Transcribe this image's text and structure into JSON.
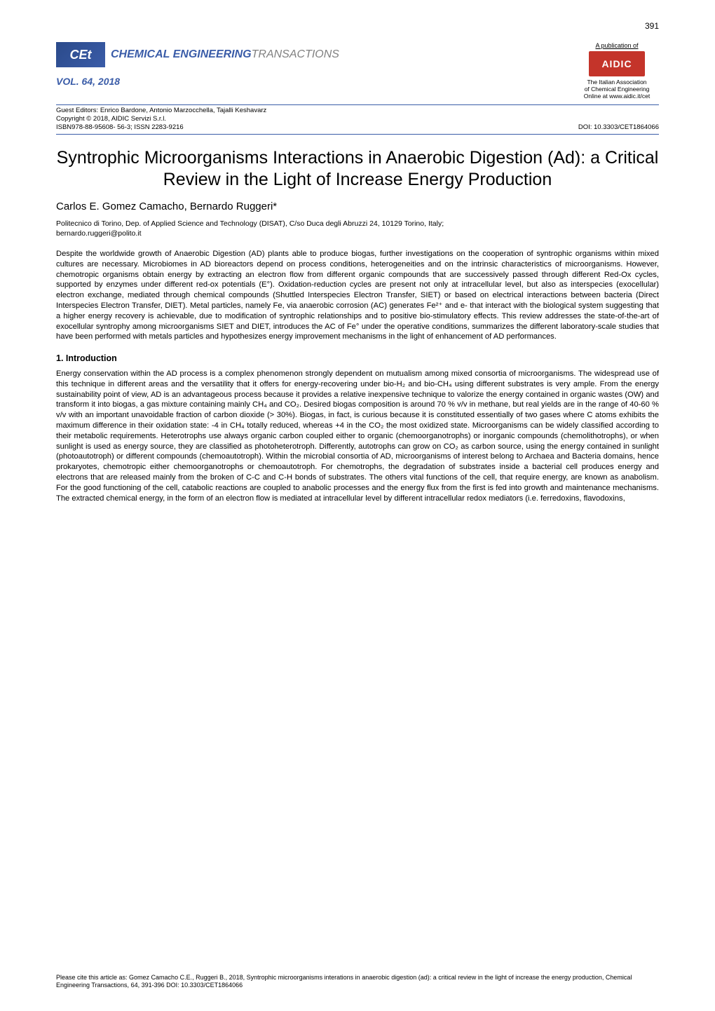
{
  "page_number": "391",
  "header": {
    "logo_text": "CEt",
    "journal_name_eng": "CHEMICAL ENGINEERING",
    "journal_name_trans": "TRANSACTIONS",
    "volume": "VOL. 64, 2018",
    "pub_label": "A publication of",
    "aidic_text": "AIDIC",
    "association_line1": "The Italian Association",
    "association_line2": "of Chemical Engineering",
    "association_line3": "Online at www.aidic.it/cet"
  },
  "meta": {
    "editors": "Guest Editors: Enrico Bardone, Antonio Marzocchella, Tajalli Keshavarz",
    "copyright": "Copyright © 2018, AIDIC Servizi S.r.l.",
    "isbn_issn": "ISBN978-88-95608- 56-3; ISSN 2283-9216",
    "doi": "DOI: 10.3303/CET1864066"
  },
  "title": "Syntrophic Microorganisms Interactions in Anaerobic Digestion (Ad): a Critical Review in the Light of Increase Energy Production",
  "authors": "Carlos E. Gomez Camacho, Bernardo Ruggeri*",
  "affiliation": "Politecnico di Torino, Dep. of Applied Science and Technology (DISAT), C/so Duca degli Abruzzi 24, 10129 Torino, Italy;",
  "email": "bernardo.ruggeri@polito.it",
  "abstract": "Despite the worldwide growth of Anaerobic Digestion (AD) plants able to produce biogas, further investigations on the cooperation of syntrophic organisms within mixed cultures are necessary. Microbiomes in AD bioreactors depend on process conditions, heterogeneities and on the intrinsic characteristics of microorganisms. However, chemotropic organisms obtain energy by extracting an electron flow from different organic compounds that are successively passed through different Red-Ox cycles, supported by enzymes under different red-ox potentials (E°). Oxidation-reduction cycles are present not only at intracellular level, but also as interspecies (exocellular) electron exchange, mediated through chemical compounds (Shuttled Interspecies Electron Transfer, SIET) or based on electrical interactions between bacteria (Direct Interspecies Electron Transfer, DIET). Metal particles, namely Fe, via anaerobic corrosion (AC) generates Fe²⁺ and e- that interact with the biological system suggesting that a higher energy recovery is achievable, due to modification of syntrophic relationships and to positive bio-stimulatory effects. This review addresses the state-of-the-art of exocellular syntrophy among microorganisms SIET and DIET, introduces the AC of Fe° under the operative conditions, summarizes the different laboratory-scale studies that have been performed with metals particles and hypothesizes energy improvement mechanisms in the light of enhancement of AD performances.",
  "section1_heading": "1. Introduction",
  "section1_body": "Energy conservation within the AD process is a complex phenomenon strongly dependent on mutualism among mixed consortia of microorganisms. The widespread use of this technique in different areas and the versatility that it offers for energy-recovering under bio-H₂ and bio-CH₄ using different substrates is very ample. From the energy sustainability point of view, AD is an advantageous process because it provides a relative inexpensive technique to valorize the energy contained in organic wastes (OW) and transform it into biogas, a gas mixture containing mainly CH₄ and CO₂. Desired biogas composition is around 70 % v/v in methane, but real yields are in the range of 40-60 % v/v with an important unavoidable fraction of carbon dioxide (> 30%). Biogas, in fact, is curious because it is constituted essentially of two gases where C atoms exhibits the maximum difference in their oxidation state: -4 in CH₄ totally reduced, whereas +4 in the CO₂ the most oxidized state. Microorganisms can be widely classified according to their metabolic requirements. Heterotrophs use always organic carbon coupled either to organic (chemoorganotrophs) or inorganic compounds (chemolithotrophs), or when sunlight is used as energy source, they are classified as photoheterotroph. Differently, autotrophs can grow on CO₂ as carbon source, using the energy contained in sunlight (photoautotroph) or different compounds (chemoautotroph). Within the microbial consortia of AD, microorganisms of interest belong to Archaea and Bacteria domains, hence prokaryotes, chemotropic either chemoorganotrophs or chemoautotroph. For chemotrophs, the degradation of substrates inside a bacterial cell produces energy and electrons that are released mainly from the broken of C-C and C-H bonds of substrates. The others vital functions of the cell, that require energy, are known as anabolism. For the good functioning of the cell, catabolic reactions are coupled to anabolic processes and the energy flux from the first is fed into growth and maintenance mechanisms. The extracted chemical energy, in the form of an electron flow is mediated at intracellular level by different intracellular redox mediators (i.e. ferredoxins, flavodoxins,",
  "citation": "Please cite this article as: Gomez Camacho C.E., Ruggeri B., 2018, Syntrophic microorganisms interations in anaerobic digestion (ad): a critical review in the light of increase the energy production, Chemical Engineering Transactions, 64, 391-396  DOI: 10.3303/CET1864066",
  "colors": {
    "brand_blue": "#3a5ca8",
    "aidic_red": "#c4342a",
    "grey": "#808080",
    "text": "#000000",
    "background": "#ffffff"
  },
  "typography": {
    "title_fontsize": 25,
    "body_fontsize": 11.2,
    "authors_fontsize": 15,
    "affiliation_fontsize": 10.5,
    "meta_fontsize": 9.5,
    "footer_fontsize": 9
  }
}
